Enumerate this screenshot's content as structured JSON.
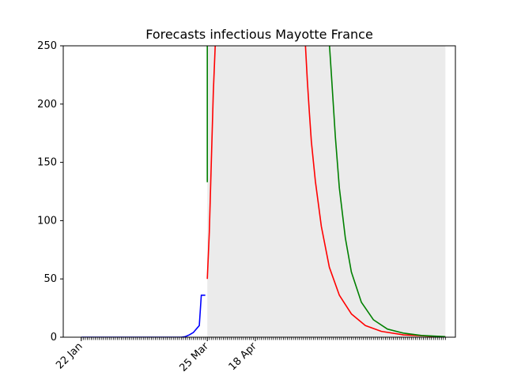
{
  "chart_data": {
    "type": "line",
    "title": "Forecasts infectious Mayotte France",
    "xlabel": "",
    "ylabel": "",
    "x_axis": {
      "type": "date",
      "start": "2020-01-13",
      "end": "2020-07-27",
      "tick_labels": [
        {
          "date": "2020-01-22",
          "label": "22 Jan"
        },
        {
          "date": "2020-03-25",
          "label": "25 Mar"
        },
        {
          "date": "2020-04-18",
          "label": "18 Apr"
        }
      ]
    },
    "ylim": [
      0,
      250
    ],
    "y_ticks": [
      0,
      50,
      100,
      150,
      200,
      250
    ],
    "grid": false,
    "legend": "none",
    "shaded_region": {
      "x_start": "2020-03-25",
      "x_end": "2020-07-22",
      "y_start": 0,
      "y_end": 250,
      "color": "#ebebeb"
    },
    "series": [
      {
        "color": "#0000ff",
        "points": [
          [
            "2020-01-22",
            0
          ],
          [
            "2020-02-10",
            0
          ],
          [
            "2020-03-01",
            0
          ],
          [
            "2020-03-12",
            0
          ],
          [
            "2020-03-14",
            0.5
          ],
          [
            "2020-03-16",
            2
          ],
          [
            "2020-03-18",
            4
          ],
          [
            "2020-03-19",
            6
          ],
          [
            "2020-03-20",
            8
          ],
          [
            "2020-03-21",
            10
          ],
          [
            "2020-03-22",
            36
          ],
          [
            "2020-03-24",
            36
          ]
        ]
      },
      {
        "color": "#ff0000",
        "points": [
          [
            "2020-03-25",
            50
          ],
          [
            "2020-03-26",
            90
          ],
          [
            "2020-03-27",
            150
          ],
          [
            "2020-03-28",
            210
          ],
          [
            "2020-03-29",
            252
          ],
          [
            "2020-05-13",
            252
          ],
          [
            "2020-05-14",
            220
          ],
          [
            "2020-05-15",
            193
          ],
          [
            "2020-05-16",
            168
          ],
          [
            "2020-05-18",
            134
          ],
          [
            "2020-05-21",
            95
          ],
          [
            "2020-05-25",
            60
          ],
          [
            "2020-05-30",
            36
          ],
          [
            "2020-06-05",
            20
          ],
          [
            "2020-06-12",
            10
          ],
          [
            "2020-06-20",
            5
          ],
          [
            "2020-07-01",
            2
          ],
          [
            "2020-07-22",
            0.3
          ]
        ]
      },
      {
        "color": "#008000",
        "points": [
          [
            "2020-03-25",
            133
          ],
          [
            "2020-03-25",
            200
          ],
          [
            "2020-03-25",
            252
          ],
          [
            "2020-05-25",
            252
          ],
          [
            "2020-05-26",
            226
          ],
          [
            "2020-05-28",
            172
          ],
          [
            "2020-05-30",
            128
          ],
          [
            "2020-06-02",
            85
          ],
          [
            "2020-06-05",
            56
          ],
          [
            "2020-06-10",
            30
          ],
          [
            "2020-06-16",
            15
          ],
          [
            "2020-06-23",
            7
          ],
          [
            "2020-07-01",
            3.5
          ],
          [
            "2020-07-10",
            1.5
          ],
          [
            "2020-07-22",
            0.5
          ]
        ]
      }
    ]
  }
}
